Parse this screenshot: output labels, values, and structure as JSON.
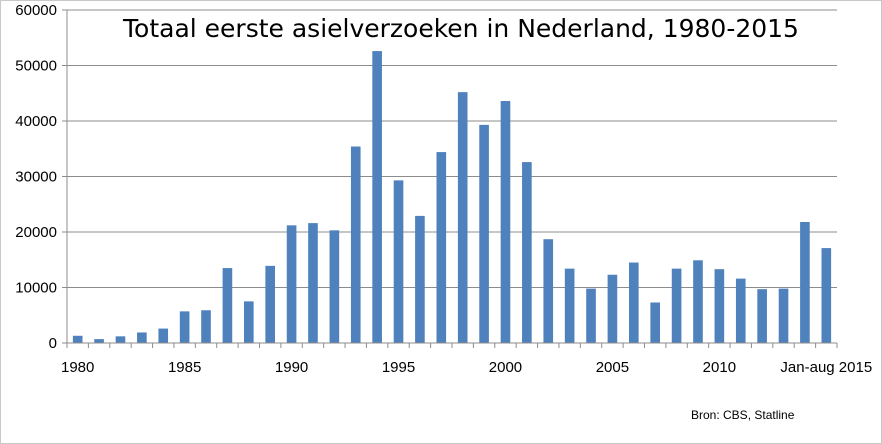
{
  "chart_data": {
    "type": "bar",
    "title": "Totaal eerste asielverzoeken in Nederland, 1980-2015",
    "source": "Bron: CBS, Statline",
    "xlabel": "",
    "ylabel": "",
    "ylim": [
      0,
      60000
    ],
    "yticks": [
      "0",
      "10000",
      "20000",
      "30000",
      "40000",
      "50000",
      "60000"
    ],
    "x_tick_labels": [
      {
        "category": "1980",
        "label": "1980"
      },
      {
        "category": "1985",
        "label": "1985"
      },
      {
        "category": "1990",
        "label": "1990"
      },
      {
        "category": "1995",
        "label": "1995"
      },
      {
        "category": "2000",
        "label": "2000"
      },
      {
        "category": "2005",
        "label": "2005"
      },
      {
        "category": "2010",
        "label": "2010"
      },
      {
        "category": "Jan-aug 2015",
        "label": "Jan-aug 2015"
      }
    ],
    "grid": true,
    "bar_color": "#4f81bd",
    "categories": [
      "1980",
      "1981",
      "1982",
      "1983",
      "1984",
      "1985",
      "1986",
      "1987",
      "1988",
      "1989",
      "1990",
      "1991",
      "1992",
      "1993",
      "1994",
      "1995",
      "1996",
      "1997",
      "1998",
      "1999",
      "2000",
      "2001",
      "2002",
      "2003",
      "2004",
      "2005",
      "2006",
      "2007",
      "2008",
      "2009",
      "2010",
      "2011",
      "2012",
      "2013",
      "2014",
      "Jan-aug 2015"
    ],
    "values": [
      1300,
      700,
      1200,
      1900,
      2600,
      5700,
      5900,
      13500,
      7500,
      13900,
      21200,
      21600,
      20300,
      35400,
      52600,
      29300,
      22900,
      34400,
      45200,
      39300,
      43600,
      32600,
      18700,
      13400,
      9800,
      12300,
      14500,
      7300,
      13400,
      14900,
      13300,
      11600,
      9700,
      9800,
      21800,
      17100
    ]
  }
}
